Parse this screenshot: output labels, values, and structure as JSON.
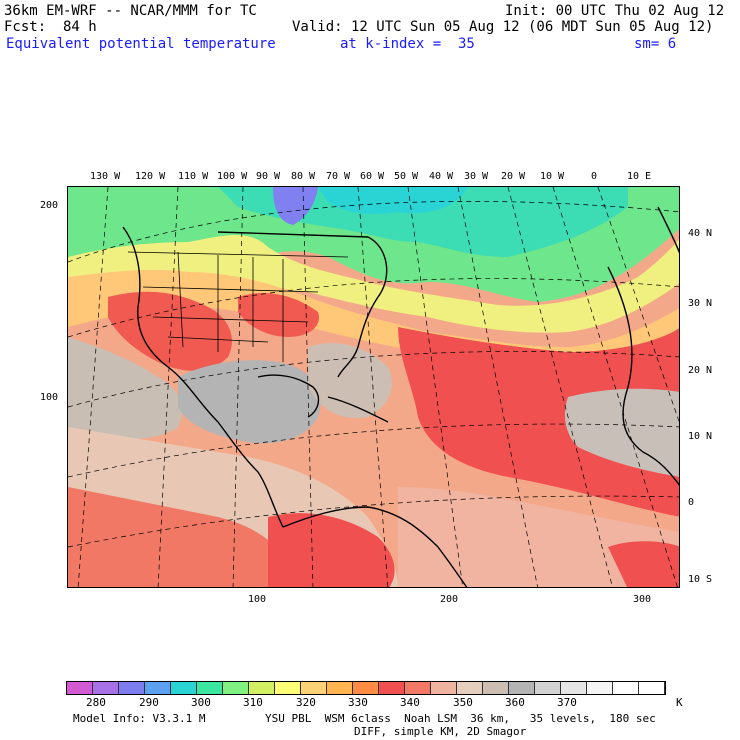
{
  "header": {
    "model_title": "36km EM-WRF -- NCAR/MMM for TC",
    "init": "Init: 00 UTC Thu 02 Aug 12",
    "fcst": "Fcst:  84 h",
    "valid": "Valid: 12 UTC Sun 05 Aug 12 (06 MDT Sun 05 Aug 12)",
    "field": "Equivalent potential temperature",
    "level": "at k-index =  35",
    "smooth": "sm= 6"
  },
  "top_lon_labels": [
    "130 W",
    "120 W",
    "110 W",
    "100 W",
    "90 W",
    "80 W",
    "70 W",
    "60 W",
    "50 W",
    "40 W",
    "30 W",
    "20 W",
    "10 W",
    "0",
    "10 E"
  ],
  "right_lat_labels": [
    "40 N",
    "30 N",
    "20 N",
    "10 N",
    "0",
    "10 S"
  ],
  "left_grid_labels": [
    "200",
    "100"
  ],
  "bottom_grid_labels": [
    "100",
    "200",
    "300"
  ],
  "legend": {
    "labels": [
      "280",
      "290",
      "300",
      "310",
      "320",
      "330",
      "340",
      "350",
      "360",
      "370"
    ],
    "unit": "K",
    "colors": [
      "#d25ad2",
      "#a870e6",
      "#7d7df0",
      "#5ea0f0",
      "#2ad4d4",
      "#3ce6a0",
      "#80f080",
      "#d2f064",
      "#ffff78",
      "#ffd278",
      "#ffb450",
      "#ff8c46",
      "#f05050",
      "#f07864",
      "#f0b4a0",
      "#e6cdbe",
      "#cdbeb4",
      "#b4b4b4",
      "#d2d2d2",
      "#e6e6e6",
      "#f5f5f5",
      "#ffffff",
      "#ffffff"
    ]
  },
  "footer": {
    "line1_left": "Model Info: V3.3.1 M",
    "line1_right": "YSU PBL  WSM 6class  Noah LSM  36 km,   35 levels,  180 sec",
    "line2": "DIFF, simple KM, 2D Smagor"
  }
}
